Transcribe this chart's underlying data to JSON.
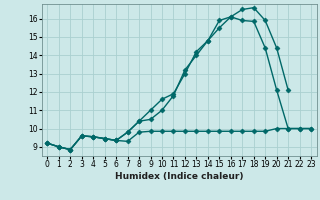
{
  "xlabel": "Humidex (Indice chaleur)",
  "ylabel": "",
  "bg_color": "#cce8e8",
  "grid_color": "#aad0d0",
  "line_color": "#006868",
  "xlim": [
    -0.5,
    23.5
  ],
  "ylim": [
    8.5,
    16.8
  ],
  "xticks": [
    0,
    1,
    2,
    3,
    4,
    5,
    6,
    7,
    8,
    9,
    10,
    11,
    12,
    13,
    14,
    15,
    16,
    17,
    18,
    19,
    20,
    21,
    22,
    23
  ],
  "yticks": [
    9,
    10,
    11,
    12,
    13,
    14,
    15,
    16
  ],
  "series1_x": [
    0,
    1,
    2,
    3,
    4,
    5,
    6,
    7,
    8,
    9,
    10,
    11,
    12,
    13,
    14,
    15,
    16,
    17,
    18,
    19,
    20,
    21,
    22,
    23
  ],
  "series1_y": [
    9.2,
    9.0,
    8.85,
    9.6,
    9.55,
    9.45,
    9.35,
    9.3,
    9.8,
    9.85,
    9.85,
    9.85,
    9.85,
    9.85,
    9.85,
    9.85,
    9.85,
    9.85,
    9.85,
    9.85,
    10.0,
    10.0,
    10.0,
    10.0
  ],
  "series2_x": [
    0,
    1,
    2,
    3,
    4,
    5,
    6,
    7,
    8,
    9,
    10,
    11,
    12,
    13,
    14,
    15,
    16,
    17,
    18,
    19,
    20,
    21,
    22,
    23
  ],
  "series2_y": [
    9.2,
    9.0,
    8.85,
    9.6,
    9.55,
    9.45,
    9.35,
    9.8,
    10.4,
    10.5,
    11.0,
    11.8,
    13.2,
    14.0,
    14.8,
    15.9,
    16.1,
    15.9,
    15.85,
    14.4,
    12.1,
    10.0,
    10.0,
    10.0
  ],
  "series3_x": [
    0,
    1,
    2,
    3,
    4,
    5,
    6,
    7,
    8,
    9,
    10,
    11,
    12,
    13,
    14,
    15,
    16,
    17,
    18,
    19,
    20,
    21
  ],
  "series3_y": [
    9.2,
    9.0,
    8.85,
    9.6,
    9.55,
    9.45,
    9.35,
    9.8,
    10.4,
    11.0,
    11.6,
    11.9,
    13.0,
    14.2,
    14.8,
    15.5,
    16.1,
    16.5,
    16.6,
    15.9,
    14.4,
    12.1
  ],
  "marker": "D",
  "markersize": 2.5,
  "linewidth": 1.0,
  "tick_fontsize": 5.5,
  "xlabel_fontsize": 6.5
}
